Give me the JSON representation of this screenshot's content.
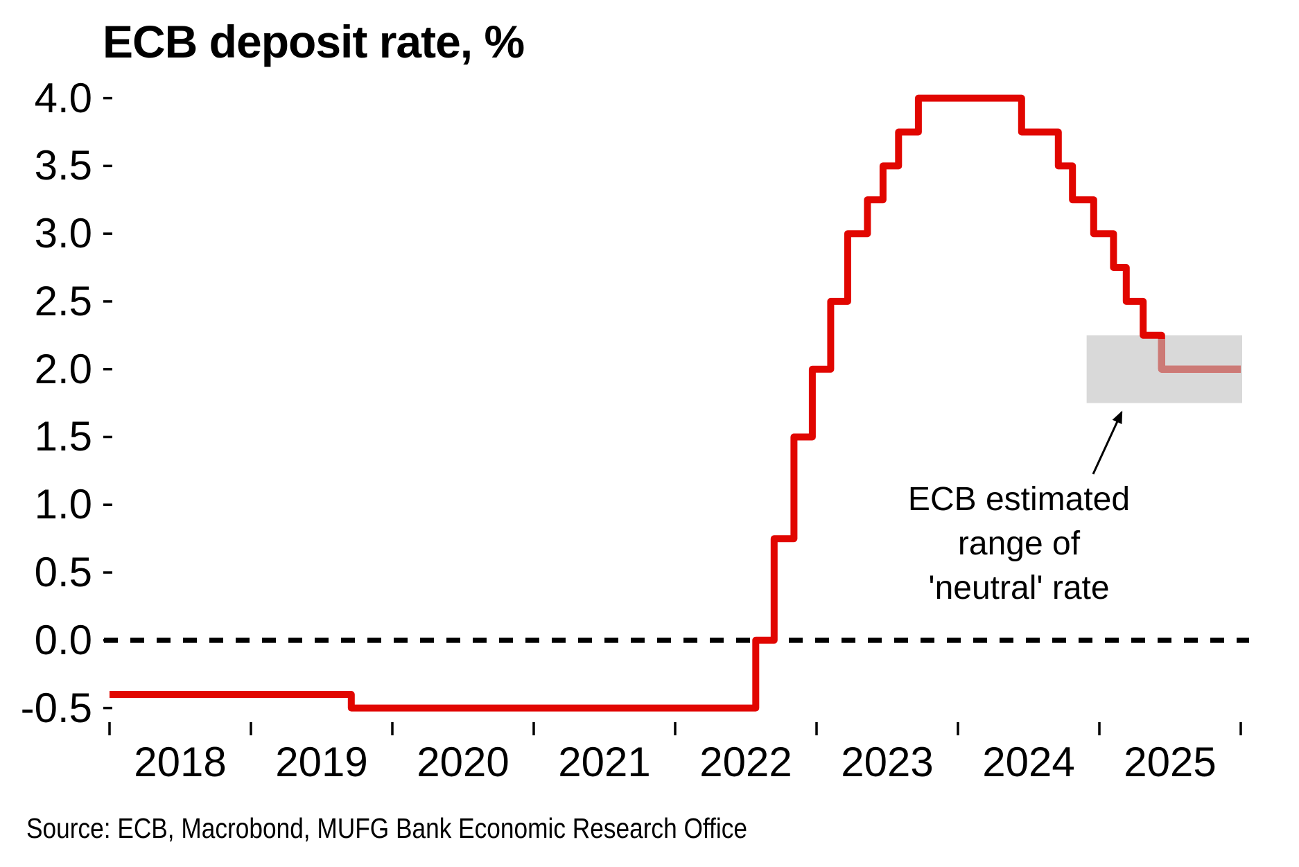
{
  "title": "ECB deposit rate, %",
  "source": "Source: ECB, Macrobond, MUFG Bank Economic Research Office",
  "annotation": {
    "lines": [
      "ECB estimated",
      "range of",
      "'neutral' rate"
    ]
  },
  "colors": {
    "line_red": "#e10600",
    "line_in_band_pink": "#cc7a76",
    "band_gray": "#d9d9d9",
    "text_black": "#000000"
  },
  "chart_data": {
    "type": "line",
    "step": true,
    "title": "ECB deposit rate, %",
    "unit": "%",
    "grid": false,
    "xlim": [
      2018,
      2026
    ],
    "ylim": [
      -0.5,
      4.0
    ],
    "y_ticks": [
      {
        "v": 4.0,
        "label": "4.0"
      },
      {
        "v": 3.5,
        "label": "3.5"
      },
      {
        "v": 3.0,
        "label": "3.0"
      },
      {
        "v": 2.5,
        "label": "2.5"
      },
      {
        "v": 2.0,
        "label": "2.0"
      },
      {
        "v": 1.5,
        "label": "1.5"
      },
      {
        "v": 1.0,
        "label": "1.0"
      },
      {
        "v": 0.5,
        "label": "0.5"
      },
      {
        "v": 0.0,
        "label": "0.0"
      },
      {
        "v": -0.5,
        "label": "-0.5"
      }
    ],
    "x_tick_boundaries": [
      2018,
      2019,
      2020,
      2021,
      2022,
      2023,
      2024,
      2025,
      2026
    ],
    "x_tick_labels": [
      "2018",
      "2019",
      "2020",
      "2021",
      "2022",
      "2023",
      "2024",
      "2025"
    ],
    "zero_line": {
      "value": 0.0,
      "style": "dashed",
      "color": "#000000"
    },
    "series": [
      {
        "name": "ECB deposit rate",
        "color": "#e10600",
        "end_t": 2026.0,
        "steps": [
          {
            "t": 2018.0,
            "rate": -0.4
          },
          {
            "t": 2019.71,
            "rate": -0.5
          },
          {
            "t": 2022.57,
            "rate": 0.0
          },
          {
            "t": 2022.7,
            "rate": 0.75
          },
          {
            "t": 2022.84,
            "rate": 1.5
          },
          {
            "t": 2022.97,
            "rate": 2.0
          },
          {
            "t": 2023.1,
            "rate": 2.5
          },
          {
            "t": 2023.22,
            "rate": 3.0
          },
          {
            "t": 2023.36,
            "rate": 3.25
          },
          {
            "t": 2023.47,
            "rate": 3.5
          },
          {
            "t": 2023.58,
            "rate": 3.75
          },
          {
            "t": 2023.72,
            "rate": 4.0
          },
          {
            "t": 2024.45,
            "rate": 3.75
          },
          {
            "t": 2024.71,
            "rate": 3.5
          },
          {
            "t": 2024.81,
            "rate": 3.25
          },
          {
            "t": 2024.96,
            "rate": 3.0
          },
          {
            "t": 2025.1,
            "rate": 2.75
          },
          {
            "t": 2025.19,
            "rate": 2.5
          },
          {
            "t": 2025.31,
            "rate": 2.25
          },
          {
            "t": 2025.44,
            "rate": 2.0
          }
        ]
      }
    ],
    "neutral_band": {
      "t_from": 2024.91,
      "t_to": 2026.0,
      "rate_from": 1.75,
      "rate_to": 2.25,
      "color": "#d9d9d9",
      "line_color_inside": "#cc7a76",
      "label": "ECB estimated range of 'neutral' rate"
    }
  }
}
